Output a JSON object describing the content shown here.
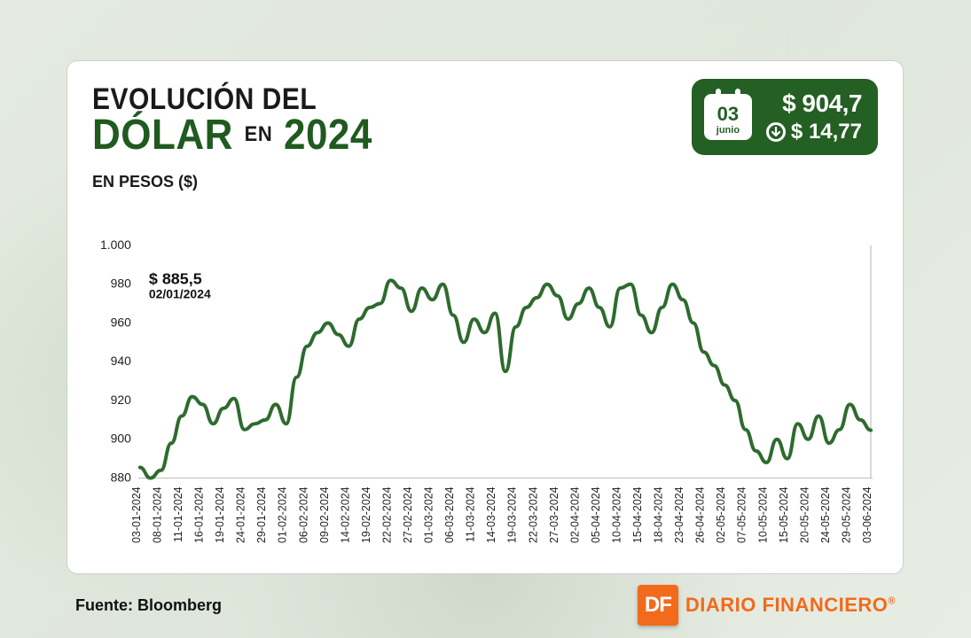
{
  "title": {
    "line1": "EVOLUCIÓN DEL",
    "line2_strong": "DÓLAR",
    "line2_mid": "EN",
    "line2_year": "2024",
    "subtitle": "EN PESOS ($)"
  },
  "badge": {
    "day": "03",
    "month": "junio",
    "price": "$ 904,7",
    "change": "$ 14,77",
    "direction": "down",
    "bg_color": "#245f24",
    "text_color": "#ffffff"
  },
  "chart": {
    "type": "line",
    "line_color": "#2e6b2e",
    "line_width": 4,
    "endpoint_vline_color": "#d9d9d9",
    "background_color": "#ffffff",
    "ylim": [
      880,
      1000
    ],
    "yticks": [
      880,
      900,
      920,
      940,
      960,
      980,
      1000
    ],
    "ytick_format": "dot_thousands",
    "ytick_fontsize": 14,
    "xtick_fontsize": 12.5,
    "xtick_rotation": -90,
    "first_point_annotation": {
      "value": "$ 885,5",
      "date": "02/01/2024"
    },
    "x_labels": [
      "03-01-2024",
      "08-01-2024",
      "11-01-2024",
      "16-01-2024",
      "19-01-2024",
      "24-01-2024",
      "29-01-2024",
      "01-02-2024",
      "06-02-2024",
      "09-02-2024",
      "14-02-2024",
      "19-02-2024",
      "22-02-2024",
      "27-02-2024",
      "01-03-2024",
      "06-03-2024",
      "11-03-2024",
      "14-03-2024",
      "19-03-2024",
      "22-03-2024",
      "27-03-2024",
      "02-04-2024",
      "05-04-2024",
      "10-04-2024",
      "15-04-2024",
      "18-04-2024",
      "23-04-2024",
      "26-04-2024",
      "02-05-2024",
      "07-05-2024",
      "10-05-2024",
      "15-05-2024",
      "20-05-2024",
      "24-05-2024",
      "29-05-2024",
      "03-06-2024"
    ],
    "values": [
      885.5,
      880,
      884,
      898,
      912,
      922,
      918,
      908,
      916,
      921,
      905,
      908,
      910,
      918,
      908,
      932,
      948,
      955,
      960,
      954,
      948,
      962,
      968,
      970,
      982,
      978,
      966,
      978,
      972,
      980,
      964,
      950,
      962,
      955,
      965,
      935,
      958,
      968,
      973,
      980,
      974,
      962,
      970,
      978,
      968,
      958,
      978,
      980,
      964,
      955,
      968,
      980,
      972,
      960,
      945,
      938,
      928,
      920,
      905,
      894,
      888,
      900,
      890,
      908,
      900,
      912,
      898,
      905,
      918,
      910,
      904.7
    ]
  },
  "footer": {
    "source_label": "Fuente: Bloomberg",
    "logo_initials": "DF",
    "logo_text": "DIARIO FINANCIERO",
    "logo_box_color": "#f26a1b",
    "logo_text_color": "#f26a1b"
  }
}
